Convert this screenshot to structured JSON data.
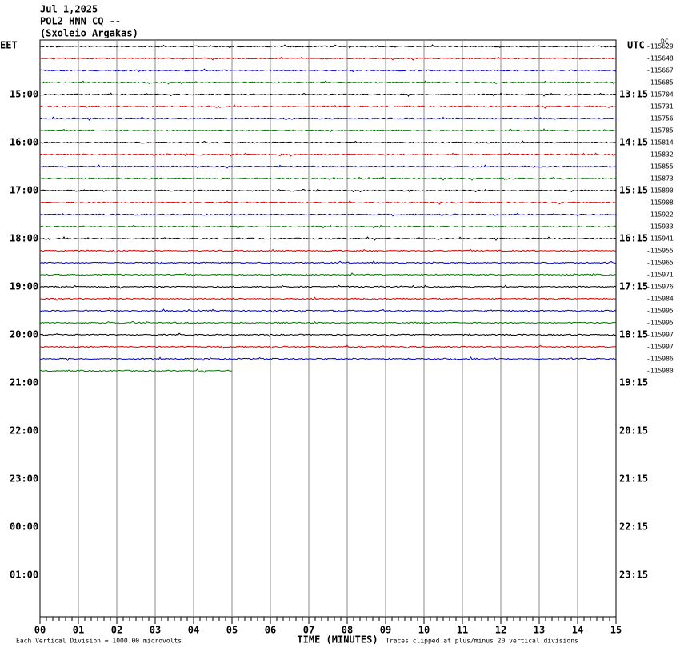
{
  "header": {
    "lines": [
      "Jul 1,2025",
      "POL2 HNN CQ --",
      "(Sxoleio Argakas)"
    ]
  },
  "left": {
    "title": "EET",
    "labels": [
      "15:00",
      "16:00",
      "17:00",
      "18:00",
      "19:00",
      "20:00",
      "21:00",
      "22:00",
      "23:00",
      "00:00",
      "01:00"
    ]
  },
  "right": {
    "title": "UTC",
    "labels": [
      "13:15",
      "14:15",
      "15:15",
      "16:15",
      "17:15",
      "18:15",
      "19:15",
      "20:15",
      "21:15",
      "22:15",
      "23:15"
    ]
  },
  "dc": {
    "title": "DC",
    "values": [
      "-115629",
      "-115648",
      "-115667",
      "-115685",
      "-115704",
      "-115731",
      "-115756",
      "-115785",
      "-115814",
      "-115832",
      "-115855",
      "-115873",
      "-115890",
      "-115908",
      "-115922",
      "-115933",
      "-115941",
      "-115955",
      "-115965",
      "-115971",
      "-115976",
      "-115984",
      "-115995",
      "-115995",
      "-115997",
      "-115997",
      "-115986",
      "-115980"
    ]
  },
  "trace_colors": [
    "#000000",
    "#dd0000",
    "#0000cc",
    "#007700"
  ],
  "final_trace_minutes": 5,
  "x_axis": {
    "title": "TIME (MINUTES)",
    "ticks": [
      "00",
      "01",
      "02",
      "03",
      "04",
      "05",
      "06",
      "07",
      "08",
      "09",
      "10",
      "11",
      "12",
      "13",
      "14",
      "15"
    ]
  },
  "footer": {
    "left": "Each Vertical Division = 1000.00 microvolts",
    "right": "Traces clipped at plus/minus 20 vertical divisions"
  }
}
